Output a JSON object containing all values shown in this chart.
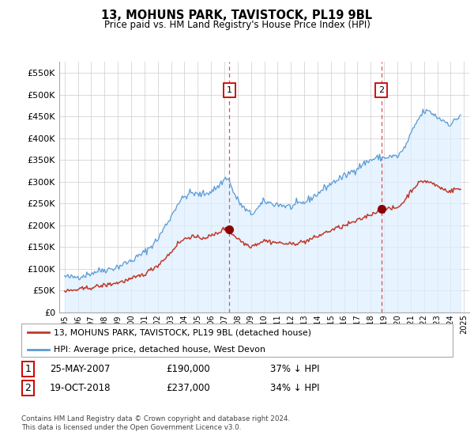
{
  "title": "13, MOHUNS PARK, TAVISTOCK, PL19 9BL",
  "subtitle": "Price paid vs. HM Land Registry's House Price Index (HPI)",
  "hpi_label": "HPI: Average price, detached house, West Devon",
  "property_label": "13, MOHUNS PARK, TAVISTOCK, PL19 9BL (detached house)",
  "footer": "Contains HM Land Registry data © Crown copyright and database right 2024.\nThis data is licensed under the Open Government Licence v3.0.",
  "sale1_date": "25-MAY-2007",
  "sale1_price": 190000,
  "sale1_text": "£190,000",
  "sale1_pct": "37% ↓ HPI",
  "sale2_date": "19-OCT-2018",
  "sale2_price": 237000,
  "sale2_text": "£237,000",
  "sale2_pct": "34% ↓ HPI",
  "sale1_year": 2007.38,
  "sale2_year": 2018.79,
  "hpi_color": "#5b9bd5",
  "hpi_fill_color": "#ddeeff",
  "property_color": "#c0392b",
  "marker_color": "#8b0000",
  "vline_color": "#e05050",
  "ylim": [
    0,
    575000
  ],
  "yticks": [
    0,
    50000,
    100000,
    150000,
    200000,
    250000,
    300000,
    350000,
    400000,
    450000,
    500000,
    550000
  ],
  "xlim_min": 1994.6,
  "xlim_max": 2025.4,
  "background_color": "#ffffff",
  "grid_color": "#cccccc"
}
